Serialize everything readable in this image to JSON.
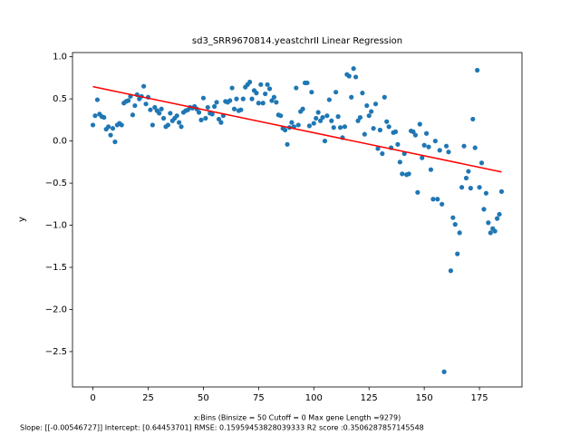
{
  "chart_data": {
    "type": "scatter",
    "title": "sd3_SRR9670814.yeastchrII Linear Regression",
    "ylabel": "y",
    "xlabel": [
      "x:Bins  (Binsize = 50 Cutoff = 0 Max gene Length =9279)",
      " Slope: [[-0.00546727]] Intercept: [0.64453701] RMSE: 0.15959453828039333 R2 score :0.3506287857145548"
    ],
    "x": [
      0,
      1,
      2,
      3,
      4,
      5,
      6,
      7,
      8,
      9,
      10,
      11,
      12,
      13,
      14,
      15,
      16,
      17,
      18,
      19,
      20,
      21,
      22,
      23,
      24,
      25,
      26,
      27,
      28,
      29,
      30,
      31,
      32,
      33,
      34,
      35,
      36,
      37,
      38,
      39,
      40,
      41,
      42,
      43,
      44,
      45,
      46,
      47,
      48,
      49,
      50,
      51,
      52,
      53,
      54,
      55,
      56,
      57,
      58,
      59,
      60,
      61,
      62,
      63,
      64,
      65,
      66,
      67,
      68,
      69,
      70,
      71,
      72,
      73,
      74,
      75,
      76,
      77,
      78,
      79,
      80,
      81,
      82,
      83,
      84,
      85,
      86,
      87,
      88,
      89,
      90,
      91,
      92,
      93,
      94,
      95,
      96,
      97,
      98,
      99,
      100,
      101,
      102,
      103,
      104,
      105,
      106,
      107,
      108,
      109,
      110,
      111,
      112,
      113,
      114,
      115,
      116,
      117,
      118,
      119,
      120,
      121,
      122,
      123,
      124,
      125,
      126,
      127,
      128,
      129,
      130,
      131,
      132,
      133,
      134,
      135,
      136,
      137,
      138,
      139,
      140,
      141,
      142,
      143,
      144,
      145,
      146,
      147,
      148,
      149,
      150,
      151,
      152,
      153,
      154,
      155,
      156,
      157,
      158,
      159,
      160,
      161,
      162,
      163,
      164,
      165,
      166,
      167,
      168,
      169,
      170,
      171,
      172,
      173,
      174,
      175,
      176,
      177,
      178,
      179,
      180,
      181,
      182,
      183,
      184,
      185
    ],
    "series": [
      {
        "type": "scatter",
        "color": "#1f77b4",
        "values": [
          0.19,
          0.3,
          0.49,
          0.32,
          0.29,
          0.28,
          0.14,
          0.17,
          0.07,
          0.15,
          -0.01,
          0.19,
          0.21,
          0.19,
          0.45,
          0.47,
          0.48,
          0.53,
          0.31,
          0.42,
          0.55,
          0.5,
          0.53,
          0.65,
          0.44,
          0.52,
          0.37,
          0.19,
          0.4,
          0.36,
          0.33,
          0.38,
          0.27,
          0.17,
          0.19,
          0.33,
          0.24,
          0.27,
          0.3,
          0.22,
          0.17,
          0.34,
          0.36,
          0.37,
          0.4,
          0.39,
          0.41,
          0.38,
          0.34,
          0.25,
          0.51,
          0.27,
          0.4,
          0.33,
          0.32,
          0.41,
          0.46,
          0.26,
          0.22,
          0.3,
          0.47,
          0.46,
          0.48,
          0.63,
          0.38,
          0.5,
          0.36,
          0.37,
          0.5,
          0.64,
          0.67,
          0.7,
          0.5,
          0.6,
          0.57,
          0.45,
          0.67,
          0.45,
          0.56,
          0.67,
          0.62,
          0.48,
          0.52,
          0.46,
          0.31,
          0.3,
          0.15,
          0.13,
          -0.04,
          0.16,
          0.22,
          0.17,
          0.63,
          0.19,
          0.35,
          0.38,
          0.69,
          0.69,
          0.18,
          0.58,
          0.21,
          0.27,
          0.34,
          0.24,
          0.28,
          0.0,
          0.3,
          0.49,
          0.24,
          0.16,
          0.58,
          0.29,
          0.16,
          0.04,
          0.17,
          0.79,
          0.77,
          0.52,
          0.86,
          0.76,
          0.24,
          0.28,
          0.57,
          0.08,
          0.42,
          0.3,
          0.35,
          0.15,
          0.44,
          -0.09,
          0.13,
          -0.15,
          0.52,
          0.23,
          0.17,
          -0.08,
          0.1,
          0.11,
          -0.04,
          -0.25,
          -0.39,
          -0.15,
          -0.4,
          -0.39,
          0.12,
          0.11,
          0.07,
          -0.61,
          0.2,
          -0.2,
          -0.05,
          0.09,
          -0.07,
          -0.34,
          -0.69,
          0.0,
          -0.69,
          -0.11,
          -0.75,
          -2.74,
          -0.06,
          -0.13,
          -1.54,
          -0.91,
          -0.99,
          -1.34,
          -1.09,
          -0.55,
          -0.06,
          -0.44,
          -0.36,
          -0.56,
          0.26,
          -0.08,
          0.84,
          -0.55,
          -0.26,
          -0.81,
          -0.62,
          -0.97,
          -1.09,
          -1.04,
          -1.07,
          -0.92,
          -0.87,
          -0.6
        ]
      },
      {
        "type": "line",
        "color": "#ff0000",
        "x": [
          0,
          185
        ],
        "values": [
          0.645,
          -0.367
        ]
      }
    ],
    "xlim": [
      -9.25,
      194.25
    ],
    "ylim": [
      -2.92,
      1.05
    ],
    "xticks": [
      0,
      25,
      50,
      75,
      100,
      125,
      150,
      175
    ],
    "yticks": [
      {
        "value": -2.5,
        "label": "−2.5"
      },
      {
        "value": -2.0,
        "label": "−2.0"
      },
      {
        "value": -1.5,
        "label": "−1.5"
      },
      {
        "value": -1.0,
        "label": "−1.0"
      },
      {
        "value": -0.5,
        "label": "−0.5"
      },
      {
        "value": 0.0,
        "label": "0.0"
      },
      {
        "value": 0.5,
        "label": "0.5"
      },
      {
        "value": 1.0,
        "label": "1.0"
      }
    ]
  }
}
